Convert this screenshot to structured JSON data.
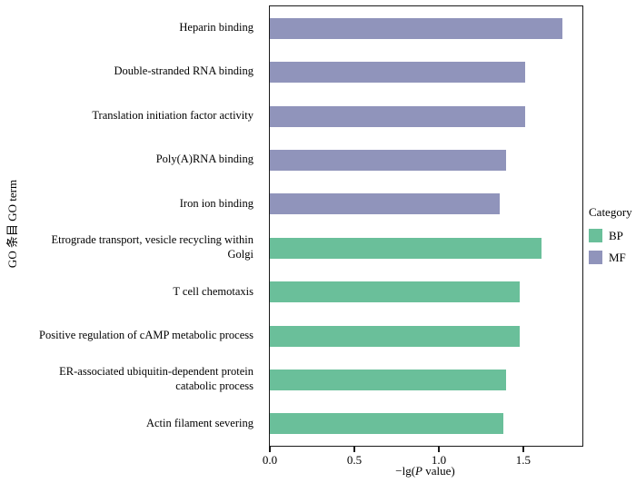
{
  "chart_data": {
    "type": "bar",
    "orientation": "horizontal",
    "title": "",
    "xlabel": "−lg(P value)",
    "xlabel_parts": {
      "prefix": "−lg(",
      "italic": "P",
      "suffix": " value)"
    },
    "ylabel": "GO 条目 GO term",
    "xlim": [
      0,
      1.85
    ],
    "xticks": [
      0.0,
      0.5,
      1.0,
      1.5
    ],
    "grid": false,
    "legend": {
      "title": "Category",
      "position": "right",
      "entries": [
        {
          "label": "BP",
          "color": "#6abf9a"
        },
        {
          "label": "MF",
          "color": "#9094bb"
        }
      ]
    },
    "bars": [
      {
        "label": "Heparin binding",
        "category": "MF",
        "value": 1.73
      },
      {
        "label": "Double-stranded RNA binding",
        "category": "MF",
        "value": 1.51
      },
      {
        "label": "Translation initiation factor activity",
        "category": "MF",
        "value": 1.51
      },
      {
        "label": "Poly(A)RNA binding",
        "category": "MF",
        "value": 1.4
      },
      {
        "label": "Iron ion binding",
        "category": "MF",
        "value": 1.36
      },
      {
        "label": "Etrograde transport, vesicle recycling within Golgi",
        "category": "BP",
        "value": 1.61
      },
      {
        "label": "T cell chemotaxis",
        "category": "BP",
        "value": 1.48
      },
      {
        "label": "Positive regulation of cAMP metabolic process",
        "category": "BP",
        "value": 1.48
      },
      {
        "label": "ER-associated ubiquitin-dependent protein catabolic process",
        "category": "BP",
        "value": 1.4
      },
      {
        "label": "Actin filament severing",
        "category": "BP",
        "value": 1.38
      }
    ]
  }
}
